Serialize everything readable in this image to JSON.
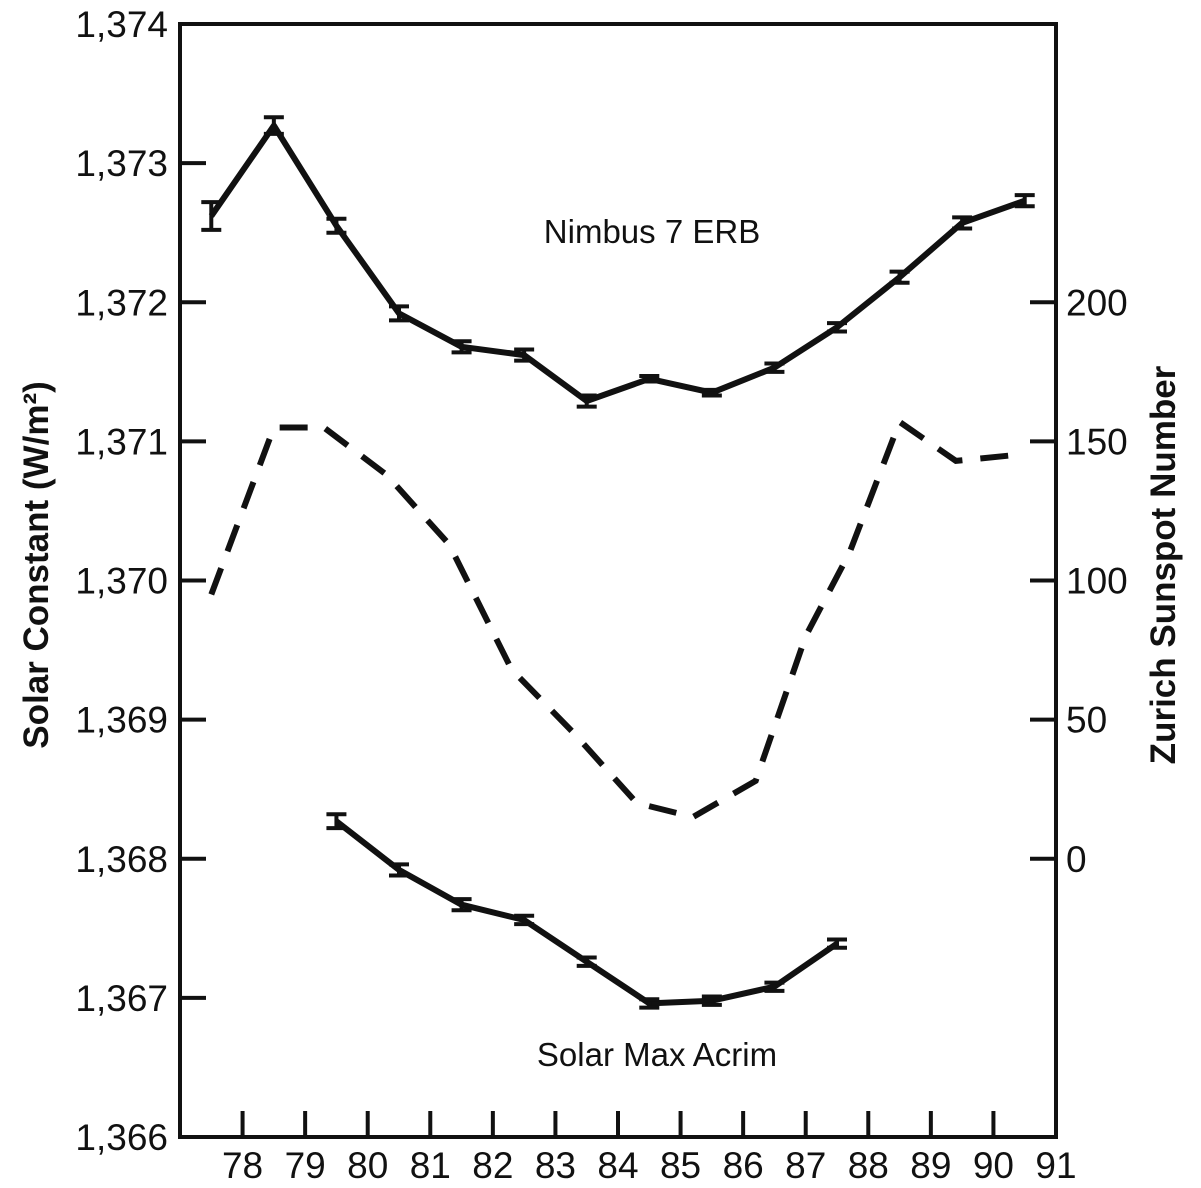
{
  "chart_data": {
    "type": "line",
    "title": "",
    "xlabel": "",
    "ylabel": "Solar Constant (W/m²)",
    "y2label": "Zurich Sunspot Number",
    "xlim": [
      77,
      91
    ],
    "ylim": [
      1366,
      1374
    ],
    "y2lim": [
      -100,
      300
    ],
    "grid": false,
    "legend": "none",
    "x_ticks": [
      "78",
      "79",
      "80",
      "81",
      "82",
      "83",
      "84",
      "85",
      "86",
      "87",
      "88",
      "89",
      "90",
      "91"
    ],
    "y_ticks": [
      "1,366",
      "1,367",
      "1,368",
      "1,369",
      "1,370",
      "1,371",
      "1,372",
      "1,373",
      "1,374"
    ],
    "y2_ticks": [
      "0",
      "50",
      "100",
      "150",
      "200"
    ],
    "series": [
      {
        "name": "Nimbus 7 ERB",
        "axis": "left",
        "style": "solid",
        "error_bars": true,
        "x": [
          77.5,
          78.5,
          79.5,
          80.5,
          81.5,
          82.5,
          83.5,
          84.5,
          85.5,
          86.5,
          87.5,
          88.5,
          89.5,
          90.5
        ],
        "y": [
          1372.62,
          1373.27,
          1372.55,
          1371.92,
          1371.68,
          1371.62,
          1371.29,
          1371.45,
          1371.35,
          1371.53,
          1371.82,
          1372.18,
          1372.57,
          1372.73
        ],
        "err": [
          0.1,
          0.06,
          0.05,
          0.05,
          0.04,
          0.04,
          0.04,
          0.02,
          0.02,
          0.03,
          0.03,
          0.04,
          0.04,
          0.04
        ]
      },
      {
        "name": "Solar Max Acrim",
        "axis": "left",
        "style": "solid",
        "error_bars": true,
        "x": [
          79.5,
          80.5,
          81.5,
          82.5,
          83.5,
          84.5,
          85.5,
          86.5,
          87.5
        ],
        "y": [
          1368.27,
          1367.92,
          1367.67,
          1367.56,
          1367.26,
          1366.96,
          1366.98,
          1367.08,
          1367.39
        ],
        "err": [
          0.05,
          0.04,
          0.04,
          0.03,
          0.03,
          0.03,
          0.03,
          0.03,
          0.03
        ]
      },
      {
        "axis": "right",
        "style": "dashed",
        "error_bars": false,
        "x": [
          77.5,
          78.5,
          79.3,
          80.3,
          81.3,
          82.3,
          83.3,
          84.3,
          85.2,
          86.2,
          87.0,
          87.7,
          88.5,
          89.4,
          90.3
        ],
        "y": [
          95,
          155,
          155,
          138,
          113,
          68,
          45,
          20,
          15,
          28,
          80,
          110,
          157,
          143,
          145
        ]
      }
    ]
  }
}
